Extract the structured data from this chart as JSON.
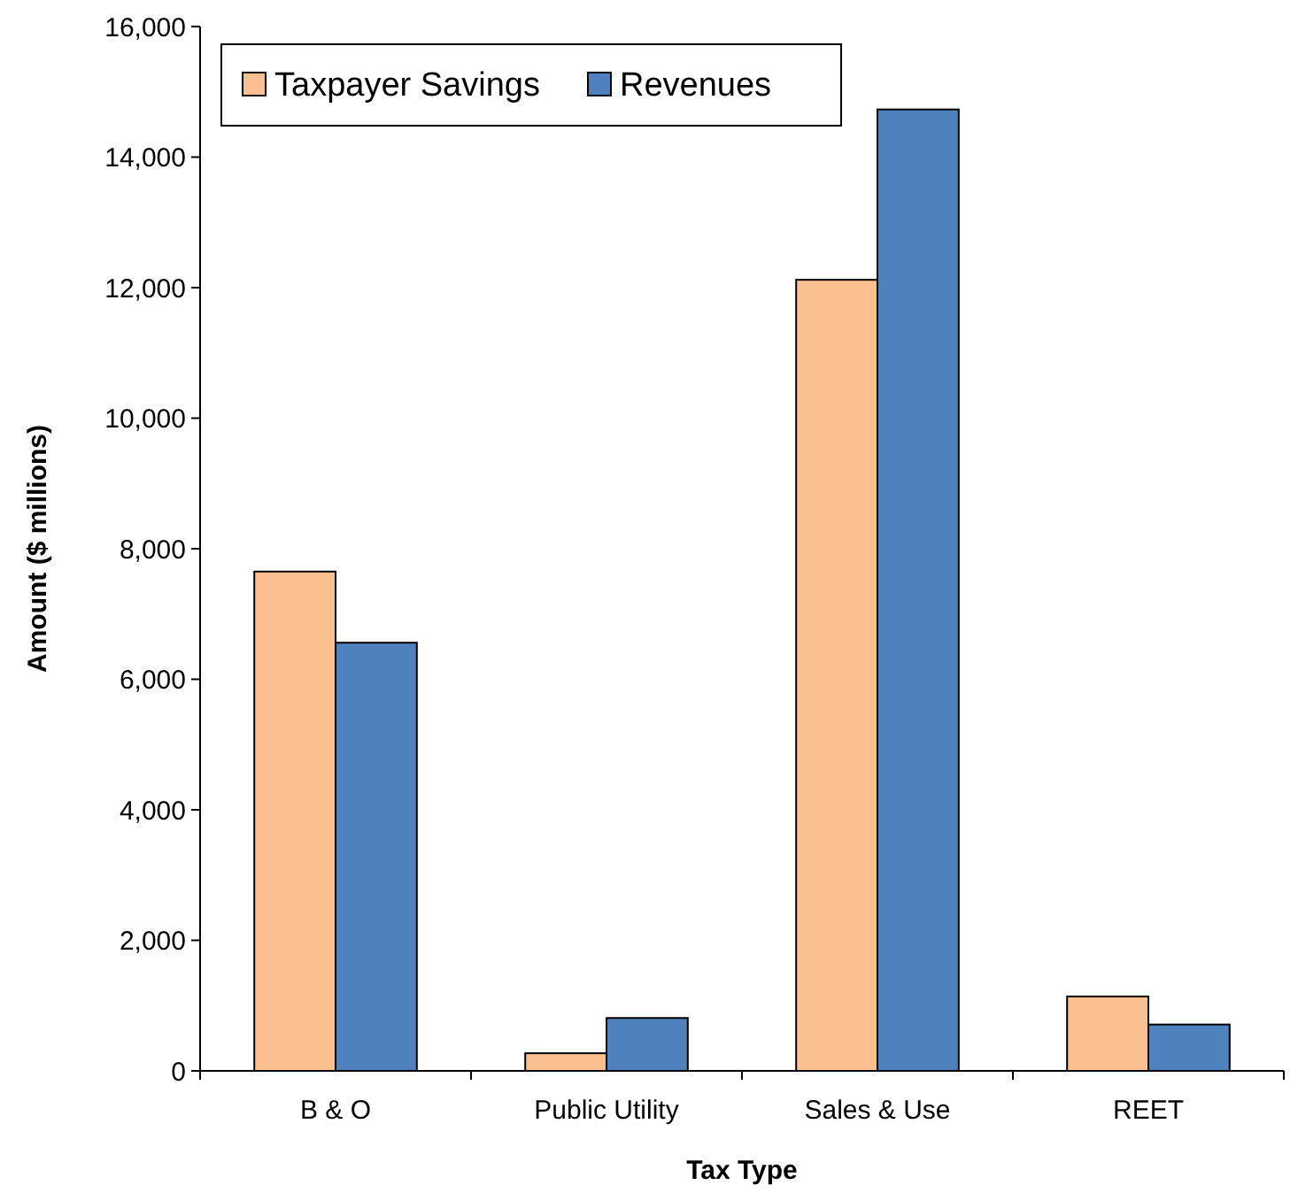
{
  "chart_data": {
    "type": "bar",
    "xlabel": "Tax Type",
    "ylabel": "Amount ($ millions)",
    "categories": [
      "B & O",
      "Public Utility",
      "Sales & Use",
      "REET"
    ],
    "series": [
      {
        "name": "Taxpayer Savings",
        "color": "#fac090",
        "values": [
          7650,
          270,
          12120,
          1140
        ]
      },
      {
        "name": "Revenues",
        "color": "#4f81bd",
        "values": [
          6560,
          810,
          14730,
          710
        ]
      }
    ],
    "ylim": [
      0,
      16000
    ],
    "yticks": [
      {
        "value": 0,
        "label": "0"
      },
      {
        "value": 2000,
        "label": "2,000"
      },
      {
        "value": 4000,
        "label": "4,000"
      },
      {
        "value": 6000,
        "label": "6,000"
      },
      {
        "value": 8000,
        "label": "8,000"
      },
      {
        "value": 10000,
        "label": "10,000"
      },
      {
        "value": 12000,
        "label": "12,000"
      },
      {
        "value": 14000,
        "label": "14,000"
      },
      {
        "value": 16000,
        "label": "16,000"
      }
    ],
    "grid": false,
    "legend": "top left"
  }
}
